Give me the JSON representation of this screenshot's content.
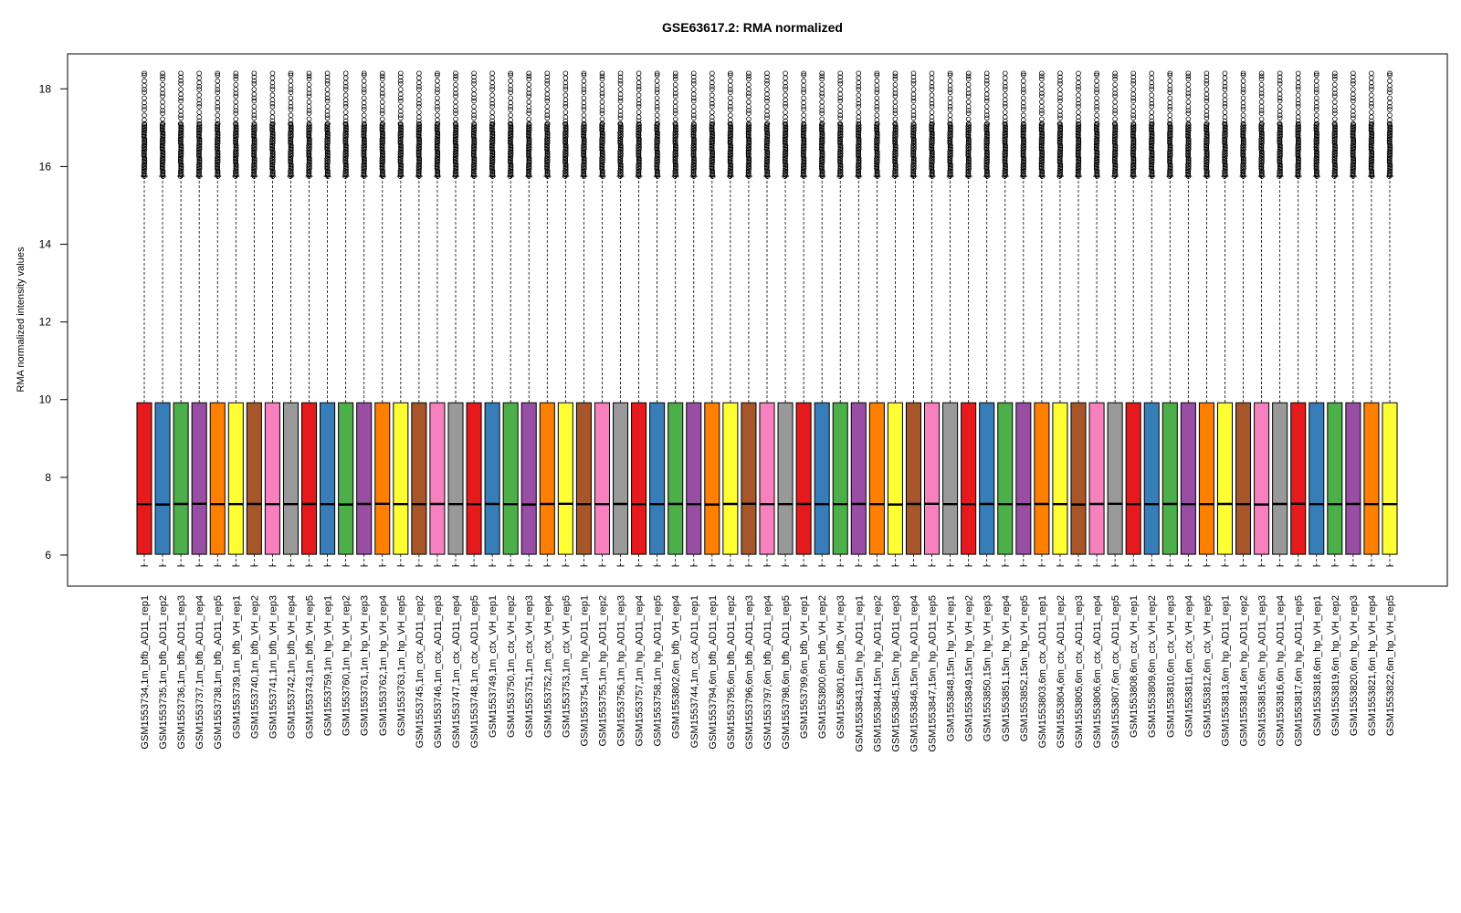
{
  "chart_data": {
    "type": "boxplot",
    "title": "GSE63617.2: RMA normalized",
    "xlabel": "",
    "ylabel": "RMA normalized intensity values",
    "ylim": [
      5.2,
      18.9
    ],
    "yticks": [
      6,
      8,
      10,
      12,
      14,
      16,
      18
    ],
    "grid": false,
    "legend": "none",
    "palette": [
      "#e41a1c",
      "#377eb8",
      "#4daf4a",
      "#984ea3",
      "#ff7f00",
      "#ffff33",
      "#a65628",
      "#f781bf",
      "#999999"
    ],
    "categories": [
      "GSM1553734,1m_bfb_AD11_rep1",
      "GSM1553735,1m_bfb_AD11_rep2",
      "GSM1553736,1m_bfb_AD11_rep3",
      "GSM1553737,1m_bfb_AD11_rep4",
      "GSM1553738,1m_bfb_AD11_rep5",
      "GSM1553739,1m_bfb_VH_rep1",
      "GSM1553740,1m_bfb_VH_rep2",
      "GSM1553741,1m_bfb_VH_rep3",
      "GSM1553742,1m_bfb_VH_rep4",
      "GSM1553743,1m_bfb_VH_rep5",
      "GSM1553759,1m_hp_VH_rep1",
      "GSM1553760,1m_hp_VH_rep2",
      "GSM1553761,1m_hp_VH_rep3",
      "GSM1553762,1m_hp_VH_rep4",
      "GSM1553763,1m_hp_VH_rep5",
      "GSM1553745,1m_ctx_AD11_rep2",
      "GSM1553746,1m_ctx_AD11_rep3",
      "GSM1553747,1m_ctx_AD11_rep4",
      "GSM1553748,1m_ctx_AD11_rep5",
      "GSM1553749,1m_ctx_VH_rep1",
      "GSM1553750,1m_ctx_VH_rep2",
      "GSM1553751,1m_ctx_VH_rep3",
      "GSM1553752,1m_ctx_VH_rep4",
      "GSM1553753,1m_ctx_VH_rep5",
      "GSM1553754,1m_hp_AD11_rep1",
      "GSM1553755,1m_hp_AD11_rep2",
      "GSM1553756,1m_hp_AD11_rep3",
      "GSM1553757,1m_hp_AD11_rep4",
      "GSM1553758,1m_hp_AD11_rep5",
      "GSM1553802,6m_bfb_VH_rep4",
      "GSM1553744,1m_ctx_AD11_rep1",
      "GSM1553794,6m_bfb_AD11_rep1",
      "GSM1553795,6m_bfb_AD11_rep2",
      "GSM1553796,6m_bfb_AD11_rep3",
      "GSM1553797,6m_bfb_AD11_rep4",
      "GSM1553798,6m_bfb_AD11_rep5",
      "GSM1553799,6m_bfb_VH_rep1",
      "GSM1553800,6m_bfb_VH_rep2",
      "GSM1553801,6m_bfb_VH_rep3",
      "GSM1553843,15m_hp_AD11_rep1",
      "GSM1553844,15m_hp_AD11_rep2",
      "GSM1553845,15m_hp_AD11_rep3",
      "GSM1553846,15m_hp_AD11_rep4",
      "GSM1553847,15m_hp_AD11_rep5",
      "GSM1553848,15m_hp_VH_rep1",
      "GSM1553849,15m_hp_VH_rep2",
      "GSM1553850,15m_hp_VH_rep3",
      "GSM1553851,15m_hp_VH_rep4",
      "GSM1553852,15m_hp_VH_rep5",
      "GSM1553803,6m_ctx_AD11_rep1",
      "GSM1553804,6m_ctx_AD11_rep2",
      "GSM1553805,6m_ctx_AD11_rep3",
      "GSM1553806,6m_ctx_AD11_rep4",
      "GSM1553807,6m_ctx_AD11_rep5",
      "GSM1553808,6m_ctx_VH_rep1",
      "GSM1553809,6m_ctx_VH_rep2",
      "GSM1553810,6m_ctx_VH_rep3",
      "GSM1553811,6m_ctx_VH_rep4",
      "GSM1553812,6m_ctx_VH_rep5",
      "GSM1553813,6m_hp_AD11_rep1",
      "GSM1553814,6m_hp_AD11_rep2",
      "GSM1553815,6m_hp_AD11_rep3",
      "GSM1553816,6m_hp_AD11_rep4",
      "GSM1553817,6m_hp_AD11_rep5",
      "GSM1553818,6m_hp_VH_rep1",
      "GSM1553819,6m_hp_VH_rep2",
      "GSM1553820,6m_hp_VH_rep3",
      "GSM1553821,6m_hp_VH_rep4",
      "GSM1553822,6m_hp_VH_rep5"
    ],
    "box_stats": {
      "whisker_low": 5.72,
      "q1": 6.02,
      "median": 7.31,
      "q3": 9.92,
      "whisker_high": 15.75,
      "outlier_max": 18.4
    }
  }
}
